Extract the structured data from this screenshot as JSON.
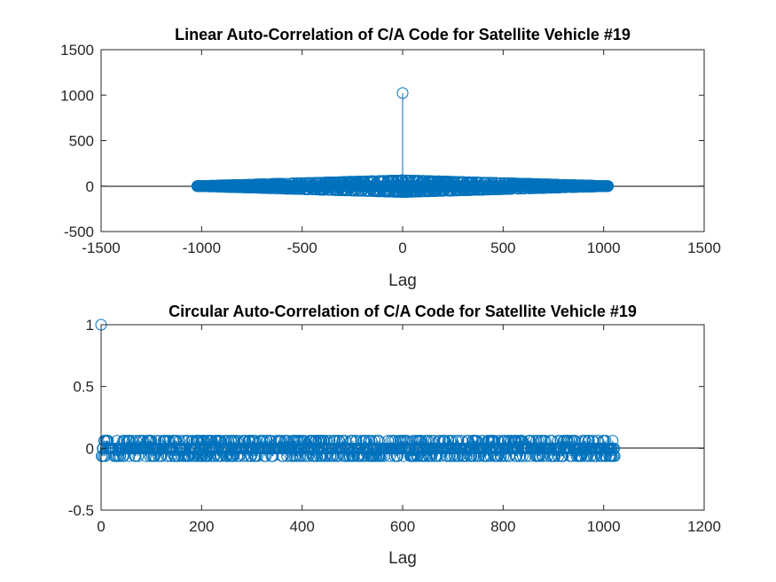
{
  "chart_data": [
    {
      "type": "stem",
      "title": "Linear Auto-Correlation of C/A Code for Satellite Vehicle #19",
      "xlabel": "Lag",
      "ylabel": "",
      "xlim": [
        -1500,
        1500
      ],
      "ylim": [
        -500,
        1500
      ],
      "xticks": [
        "-1500",
        "-1000",
        "-500",
        "0",
        "500",
        "1000",
        "1500"
      ],
      "yticks": [
        "-500",
        "0",
        "500",
        "1000",
        "1500"
      ],
      "grid": false,
      "color": "#0072bd",
      "series": [
        {
          "lag_range": [
            -1022,
            1022
          ],
          "peak": {
            "x": 0,
            "y": 1023
          },
          "sidelobe_levels": [
            -65,
            -1,
            63
          ],
          "sidelobe_envelope_max": 63
        }
      ]
    },
    {
      "type": "stem",
      "title": "Circular Auto-Correlation of C/A Code for Satellite Vehicle #19",
      "xlabel": "Lag",
      "ylabel": "",
      "xlim": [
        0,
        1200
      ],
      "ylim": [
        -0.5,
        1
      ],
      "xticks": [
        "0",
        "200",
        "400",
        "600",
        "800",
        "1000",
        "1200"
      ],
      "yticks": [
        "-0.5",
        "0",
        "0.5",
        "1"
      ],
      "grid": false,
      "color": "#0072bd",
      "series": [
        {
          "lag_range": [
            0,
            1022
          ],
          "peak": {
            "x": 0,
            "y": 1
          },
          "levels": [
            -0.0635,
            -0.00098,
            0.0616
          ]
        }
      ]
    }
  ]
}
